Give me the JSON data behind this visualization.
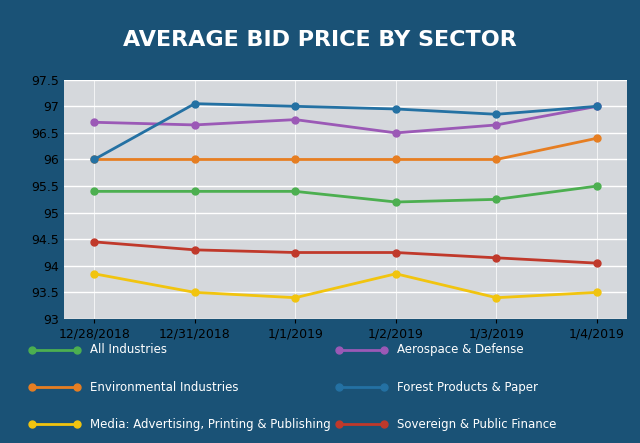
{
  "title": "AVERAGE BID PRICE BY SECTOR",
  "x_labels": [
    "12/28/2018",
    "12/31/2018",
    "1/1/2019",
    "1/2/2019",
    "1/3/2019",
    "1/4/2019"
  ],
  "ylim": [
    93,
    97.5
  ],
  "yticks": [
    93,
    93.5,
    94,
    94.5,
    95,
    95.5,
    96,
    96.5,
    97,
    97.5
  ],
  "series": [
    {
      "name": "All Industries",
      "color": "#4CAF50",
      "values": [
        95.4,
        95.4,
        95.4,
        95.2,
        95.25,
        95.5
      ]
    },
    {
      "name": "Aerospace & Defense",
      "color": "#9B59B6",
      "values": [
        96.7,
        96.65,
        96.75,
        96.5,
        96.65,
        97.0
      ]
    },
    {
      "name": "Environmental Industries",
      "color": "#E67E22",
      "values": [
        96.0,
        96.0,
        96.0,
        96.0,
        96.0,
        96.4
      ]
    },
    {
      "name": "Forest Products & Paper",
      "color": "#2471A3",
      "values": [
        96.0,
        97.05,
        97.0,
        96.95,
        96.85,
        97.0
      ]
    },
    {
      "name": "Media: Advertising, Printing & Publishing",
      "color": "#F1C40F",
      "values": [
        93.85,
        93.5,
        93.4,
        93.85,
        93.4,
        93.5
      ]
    },
    {
      "name": "Sovereign & Public Finance",
      "color": "#C0392B",
      "values": [
        94.45,
        94.3,
        94.25,
        94.25,
        94.15,
        94.05
      ]
    }
  ],
  "background_color": "#D5D8DC",
  "title_bg_color": "#1A5276",
  "title_color": "white",
  "legend_bg_color": "#1A5276",
  "legend_text_color": "white",
  "fig_bg_color": "#1A5276"
}
